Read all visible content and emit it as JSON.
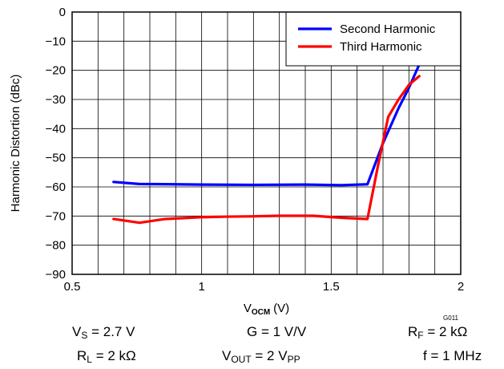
{
  "chart_data": {
    "type": "line",
    "xlabel_main": "V",
    "xlabel_sub": "OCM",
    "xlabel_unit": "(V)",
    "ylabel": "Harmonic Distortion (dBc)",
    "xlim": [
      0.5,
      2
    ],
    "ylim": [
      -90,
      0
    ],
    "xticks": [
      0.5,
      1,
      1.5,
      2
    ],
    "xtick_labels": [
      "0.5",
      "1",
      "1.5",
      "2"
    ],
    "yticks": [
      0,
      -10,
      -20,
      -30,
      -40,
      -50,
      -60,
      -70,
      -80,
      -90
    ],
    "ytick_labels": [
      "0",
      "−10",
      "−20",
      "−30",
      "−40",
      "−50",
      "−60",
      "−70",
      "−80",
      "−90"
    ],
    "grid": true,
    "grid_x_step": 0.1,
    "legend_position": "top-right",
    "graph_id": "G011",
    "series": [
      {
        "name": "Second Harmonic",
        "color": "#0000ff",
        "x": [
          0.66,
          0.76,
          0.9,
          1.0,
          1.2,
          1.4,
          1.54,
          1.64,
          1.7,
          1.76,
          1.8,
          1.84
        ],
        "y": [
          -58.3,
          -59,
          -59.1,
          -59.2,
          -59.3,
          -59.2,
          -59.4,
          -59.1,
          -45,
          -33,
          -26,
          -18
        ]
      },
      {
        "name": "Third Harmonic",
        "color": "#ff0000",
        "x": [
          0.66,
          0.76,
          0.86,
          1.0,
          1.1,
          1.2,
          1.3,
          1.43,
          1.54,
          1.64,
          1.68,
          1.72,
          1.76,
          1.8,
          1.84
        ],
        "y": [
          -71,
          -72.3,
          -71,
          -70.4,
          -70.2,
          -70.1,
          -69.9,
          -69.9,
          -70.6,
          -71,
          -53,
          -36,
          -30,
          -25,
          -22
        ]
      }
    ]
  },
  "conditions": {
    "vs": {
      "main": "V",
      "sub": "S",
      "rest": " = 2.7 V"
    },
    "g": {
      "main": "G = 1 V/V"
    },
    "rf": {
      "main": "R",
      "sub": "F",
      "rest": " = 2 kΩ"
    },
    "rl": {
      "main": "R",
      "sub": "L",
      "rest": " = 2 kΩ"
    },
    "vout": {
      "main": "V",
      "sub": "OUT",
      "rest": " = 2 V",
      "sub2": "PP"
    },
    "f": {
      "main": "f = 1 MHz"
    }
  }
}
